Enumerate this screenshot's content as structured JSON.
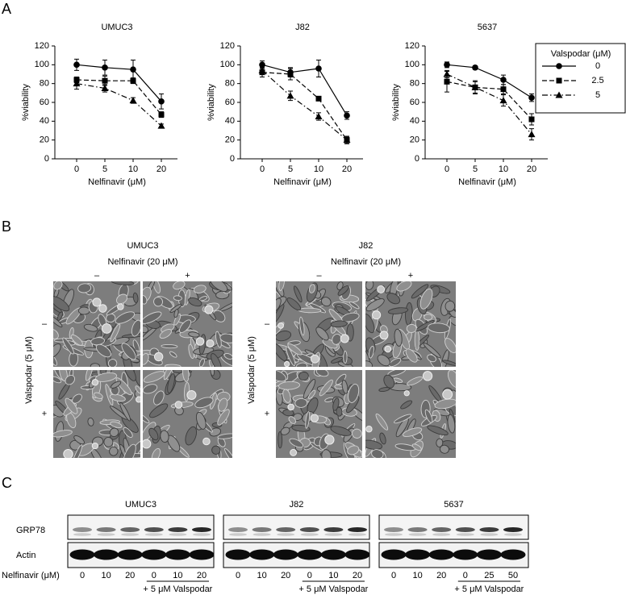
{
  "panel_labels": [
    "A",
    "B",
    "C"
  ],
  "chart_data": [
    {
      "type": "line",
      "title": "UMUC3",
      "xlabel": "Nelfinavir (μM)",
      "ylabel": "%viability",
      "categories": [
        "0",
        "5",
        "10",
        "20"
      ],
      "ylim": [
        0,
        120
      ],
      "yticks": [
        0,
        20,
        40,
        60,
        80,
        100,
        120
      ],
      "series": [
        {
          "name": "0",
          "color": "#000000",
          "marker": "circle",
          "linestyle": "solid",
          "values": [
            100,
            97,
            95,
            61
          ],
          "errors": [
            6,
            8,
            10,
            8
          ]
        },
        {
          "name": "2.5",
          "color": "#000000",
          "marker": "square",
          "linestyle": "dashed",
          "values": [
            84,
            83,
            83,
            47
          ],
          "errors": [
            3,
            5,
            3,
            3
          ]
        },
        {
          "name": "5",
          "color": "#000000",
          "marker": "triangle",
          "linestyle": "dashdot",
          "values": [
            80,
            75,
            62,
            35
          ],
          "errors": [
            6,
            4,
            3,
            2
          ]
        }
      ]
    },
    {
      "type": "line",
      "title": "J82",
      "xlabel": "Nelfinavir (μM)",
      "ylabel": "%viability",
      "categories": [
        "0",
        "5",
        "10",
        "20"
      ],
      "ylim": [
        0,
        120
      ],
      "yticks": [
        0,
        20,
        40,
        60,
        80,
        100,
        120
      ],
      "series": [
        {
          "name": "0",
          "color": "#000000",
          "marker": "circle",
          "linestyle": "solid",
          "values": [
            100,
            92,
            96,
            46
          ],
          "errors": [
            4,
            5,
            9,
            4
          ]
        },
        {
          "name": "2.5",
          "color": "#000000",
          "marker": "square",
          "linestyle": "dashed",
          "values": [
            92,
            90,
            64,
            20
          ],
          "errors": [
            5,
            6,
            2,
            4
          ]
        },
        {
          "name": "5",
          "color": "#000000",
          "marker": "triangle",
          "linestyle": "dashdot",
          "values": [
            94,
            67,
            45,
            20
          ],
          "errors": [
            4,
            5,
            4,
            3
          ]
        }
      ]
    },
    {
      "type": "line",
      "title": "5637",
      "xlabel": "Nelfinavir (μM)",
      "ylabel": "%viability",
      "categories": [
        "0",
        "5",
        "10",
        "20"
      ],
      "ylim": [
        0,
        120
      ],
      "yticks": [
        0,
        20,
        40,
        60,
        80,
        100,
        120
      ],
      "legend": "outside right",
      "legend_title": "Valspodar (μM)",
      "series": [
        {
          "name": "0",
          "color": "#000000",
          "marker": "circle",
          "linestyle": "solid",
          "values": [
            100,
            97,
            84,
            65
          ],
          "errors": [
            3,
            2,
            5,
            4
          ]
        },
        {
          "name": "2.5",
          "color": "#000000",
          "marker": "square",
          "linestyle": "dashed",
          "values": [
            82,
            76,
            74,
            42
          ],
          "errors": [
            11,
            6,
            5,
            6
          ]
        },
        {
          "name": "5",
          "color": "#000000",
          "marker": "triangle",
          "linestyle": "dashdot",
          "values": [
            90,
            76,
            62,
            26
          ],
          "errors": [
            4,
            7,
            6,
            6
          ]
        }
      ]
    }
  ],
  "micrographs": [
    {
      "cell_line": "UMUC3",
      "treatment": "Nelfinavir (20 μM)",
      "column_labels": [
        "–",
        "+"
      ],
      "row_title": "Valspodar (5 μM)",
      "row_labels": [
        "–",
        "+"
      ]
    },
    {
      "cell_line": "J82",
      "treatment": "Nelfinavir (20 μM)",
      "column_labels": [
        "–",
        "+"
      ],
      "row_title": "Valspodar (5 μM)",
      "row_labels": [
        "–",
        "+"
      ]
    }
  ],
  "blots": {
    "row_labels": [
      "GRP78",
      "Actin"
    ],
    "lane_title": "Nelfinavir (μM)",
    "panels": [
      {
        "cell_line": "UMUC3",
        "lanes": [
          "0",
          "10",
          "20",
          "0",
          "10",
          "20"
        ],
        "group_label": "+ 5 μM Valspodar"
      },
      {
        "cell_line": "J82",
        "lanes": [
          "0",
          "10",
          "20",
          "0",
          "10",
          "20"
        ],
        "group_label": "+ 5 μM Valspodar"
      },
      {
        "cell_line": "5637",
        "lanes": [
          "0",
          "10",
          "20",
          "0",
          "25",
          "50"
        ],
        "group_label": "+ 5 μM Valspodar"
      }
    ]
  }
}
